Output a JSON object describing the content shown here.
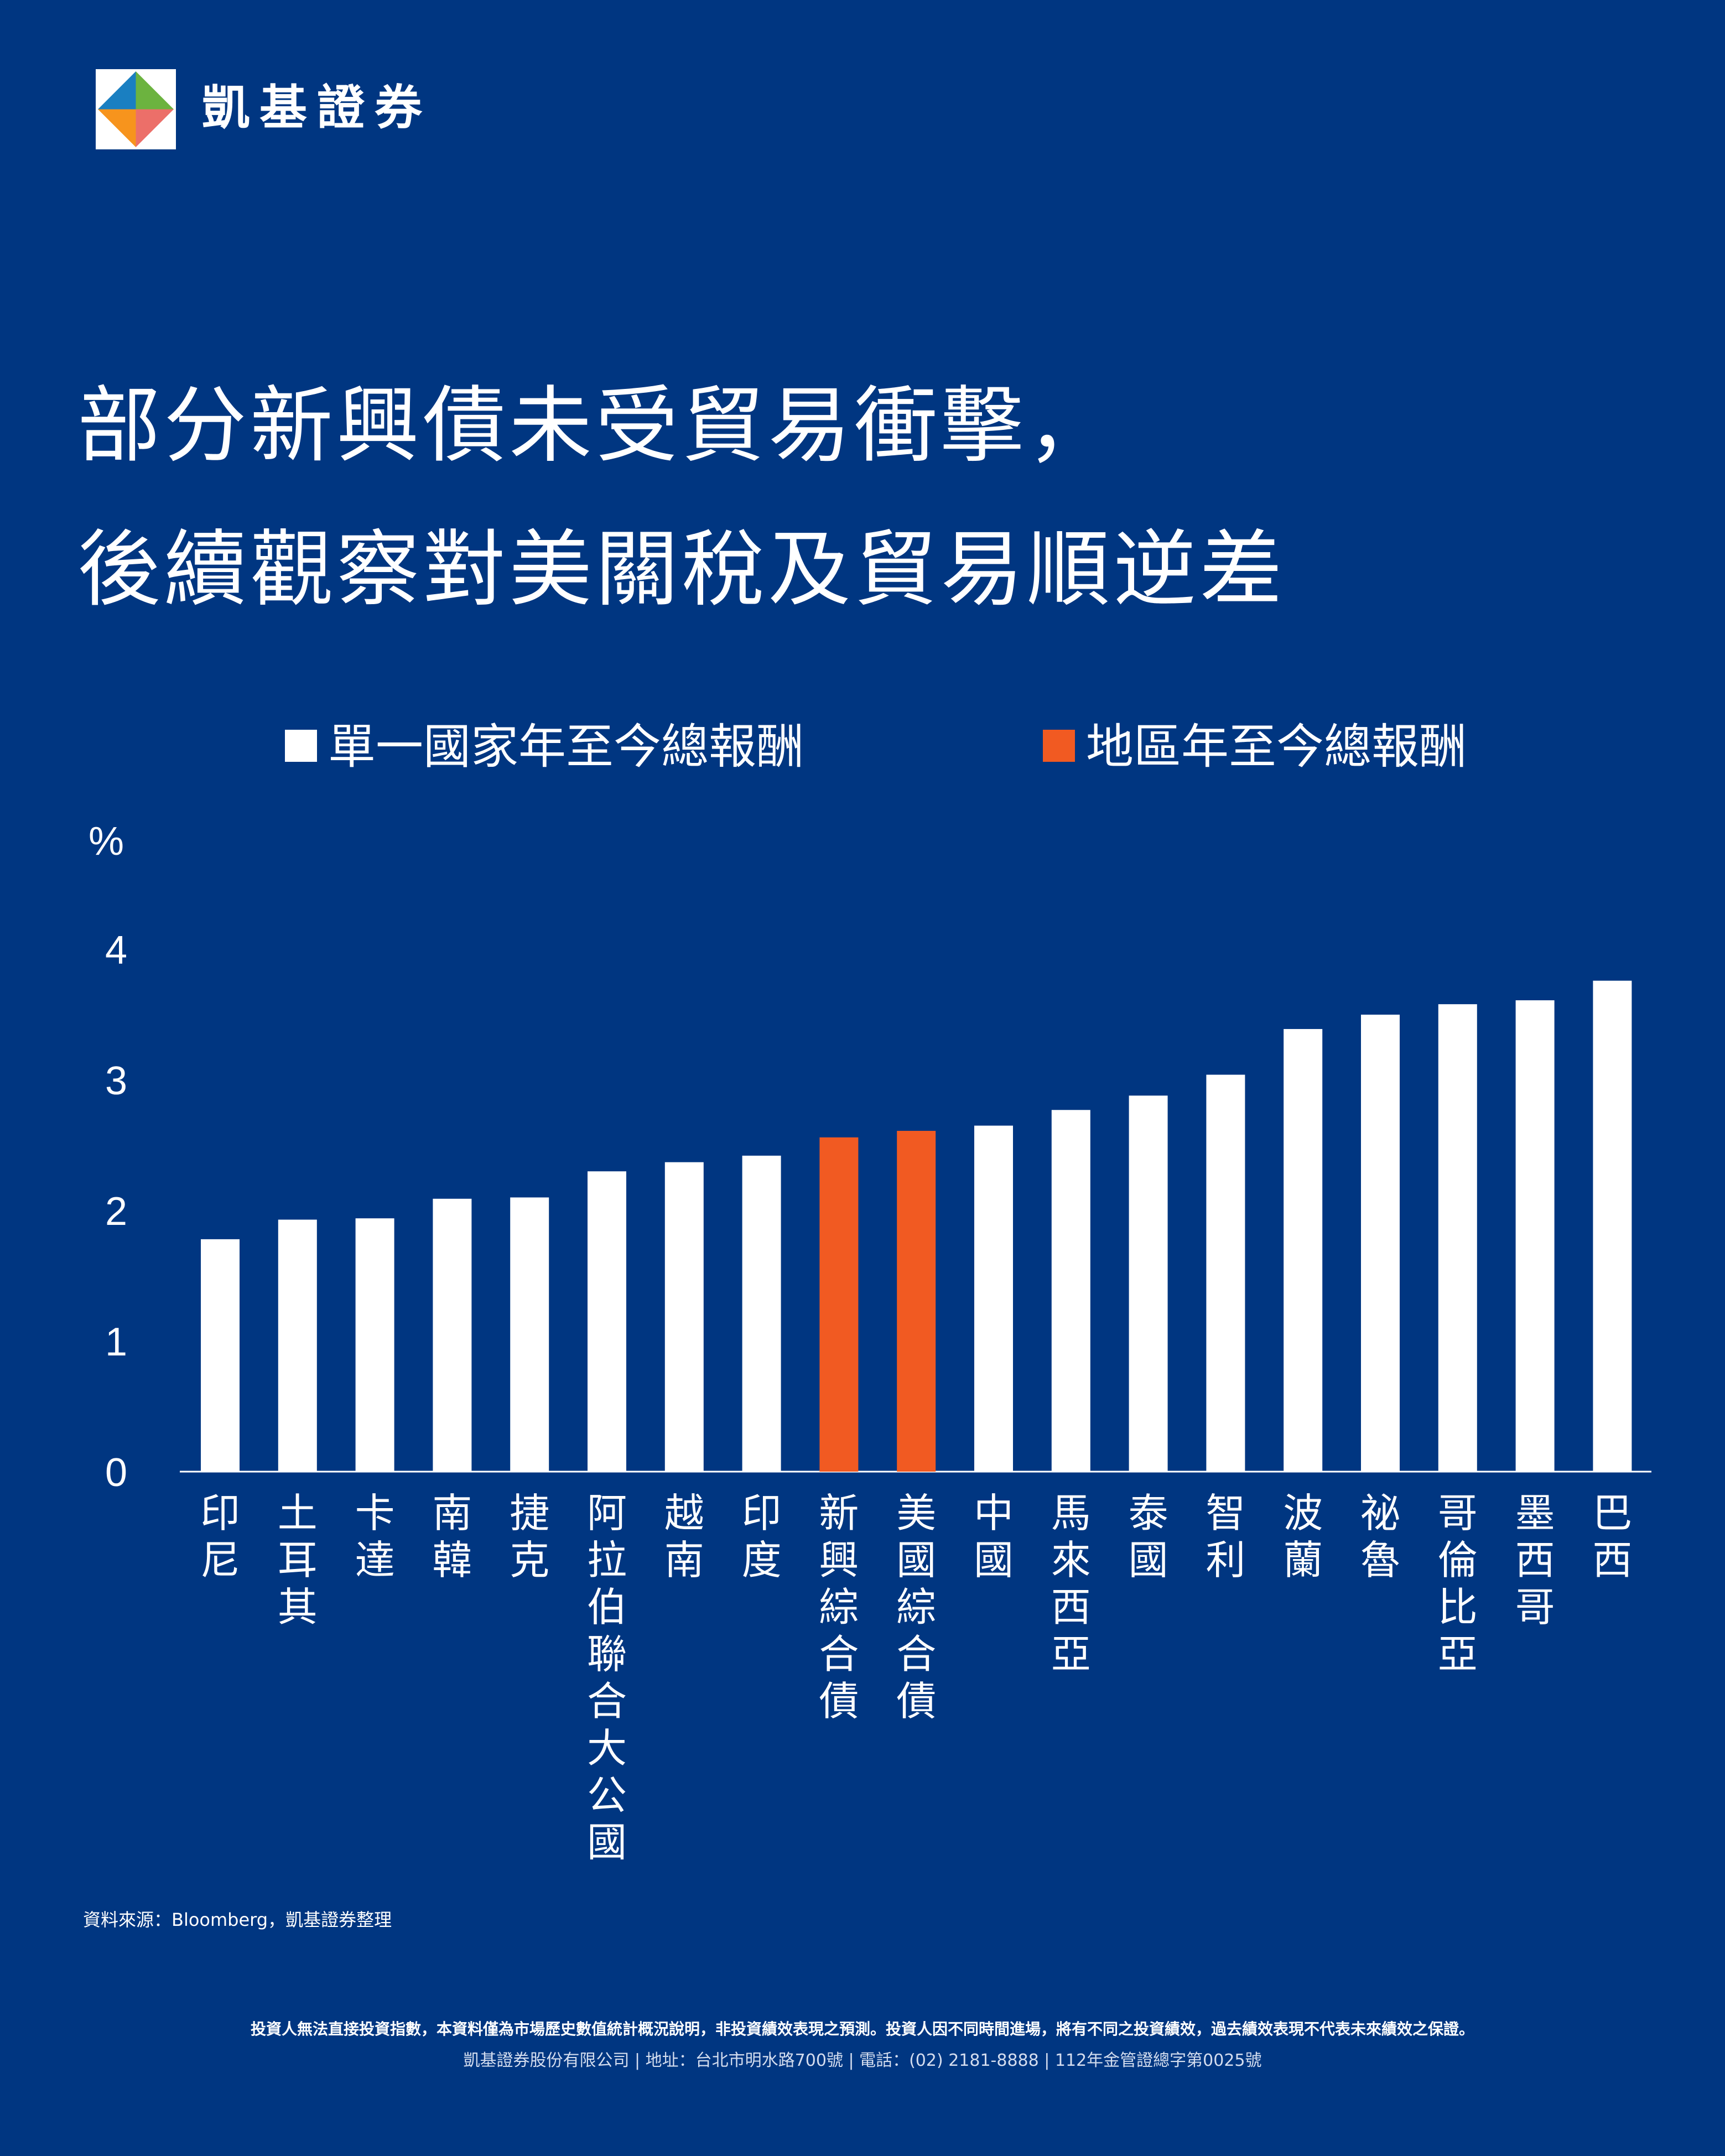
{
  "brand": {
    "name": "凱基證券"
  },
  "title": {
    "line1": "部分新興債未受貿易衝擊，",
    "line2": "後續觀察對美關稅及貿易順逆差"
  },
  "legend": {
    "country_label": "單一國家年至今總報酬",
    "region_label": "地區年至今總報酬"
  },
  "colors": {
    "background": "#003681",
    "country": "#ffffff",
    "region": "#f15a22"
  },
  "chart_data": {
    "type": "bar",
    "ylabel": "%",
    "ylim": [
      0,
      4
    ],
    "yticks": [
      0,
      1,
      2,
      3,
      4
    ],
    "grid": false,
    "legend_position": "top",
    "categories": [
      "印尼",
      "土耳其",
      "卡達",
      "南韓",
      "捷克",
      "阿拉伯聯合大公國",
      "越南",
      "印度",
      "新興綜合債",
      "美國綜合債",
      "中國",
      "馬來西亞",
      "泰國",
      "智利",
      "波蘭",
      "祕魯",
      "哥倫比亞",
      "墨西哥",
      "巴西"
    ],
    "values": [
      1.78,
      1.93,
      1.94,
      2.09,
      2.1,
      2.3,
      2.37,
      2.42,
      2.56,
      2.61,
      2.65,
      2.77,
      2.88,
      3.04,
      3.39,
      3.5,
      3.58,
      3.61,
      3.76
    ],
    "series_type": [
      "country",
      "country",
      "country",
      "country",
      "country",
      "country",
      "country",
      "country",
      "region",
      "region",
      "country",
      "country",
      "country",
      "country",
      "country",
      "country",
      "country",
      "country",
      "country"
    ]
  },
  "source": "資料來源：Bloomberg，凱基證券整理",
  "footer": {
    "disclaimer": "投資人無法直接投資指數，本資料僅為市場歷史數值統計概況說明，非投資績效表現之預測。投資人因不同時間進場，將有不同之投資績效，過去績效表現不代表未來績效之保證。",
    "company": "凱基證券股份有限公司 | 地址：台北市明水路700號 | 電話：(02) 2181-8888 | 112年金管證總字第0025號"
  }
}
